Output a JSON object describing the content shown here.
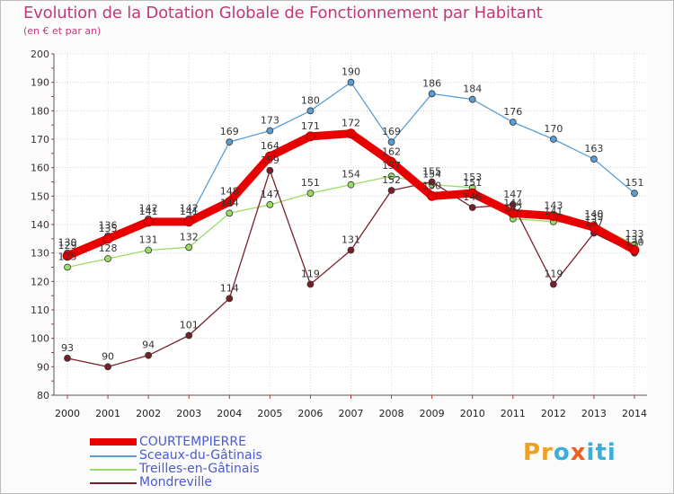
{
  "header": {
    "title": "Evolution de la Dotation Globale de Fonctionnement par Habitant",
    "subtitle": "(en € et par an)"
  },
  "chart_data": {
    "type": "line",
    "title": "Evolution de la Dotation Globale de Fonctionnement par Habitant",
    "ylabel": "(en € et par an)",
    "xlabel": "",
    "ylim": [
      80,
      200
    ],
    "yticks": [
      80,
      90,
      100,
      110,
      120,
      130,
      140,
      150,
      160,
      170,
      180,
      190,
      200
    ],
    "categories": [
      "2000",
      "2001",
      "2002",
      "2003",
      "2004",
      "2005",
      "2006",
      "2007",
      "2008",
      "2009",
      "2010",
      "2011",
      "2012",
      "2013",
      "2014"
    ],
    "grid": true,
    "legend_position": "bottom-left",
    "series": [
      {
        "name": "COURTEMPIERRE",
        "color": "#e80000",
        "values": [
          129,
          135,
          141,
          141,
          148,
          164,
          171,
          172,
          162,
          150,
          151,
          144,
          143,
          139,
          131
        ]
      },
      {
        "name": "Sceaux-du-Gâtinais",
        "color": "#5a9fd4",
        "values": [
          130,
          136,
          142,
          142,
          169,
          173,
          180,
          190,
          169,
          186,
          184,
          176,
          170,
          163,
          151
        ]
      },
      {
        "name": "Treilles-en-Gâtinais",
        "color": "#99dd66",
        "values": [
          125,
          128,
          131,
          132,
          144,
          147,
          151,
          154,
          157,
          154,
          153,
          142,
          141,
          140,
          133
        ]
      },
      {
        "name": "Mondreville",
        "color": "#7a1f2a",
        "values": [
          93,
          90,
          94,
          101,
          114,
          159,
          119,
          131,
          152,
          155,
          146,
          147,
          119,
          137,
          130
        ]
      }
    ]
  },
  "logo": {
    "parts": [
      "Pr",
      "o",
      "x",
      "iti"
    ]
  }
}
